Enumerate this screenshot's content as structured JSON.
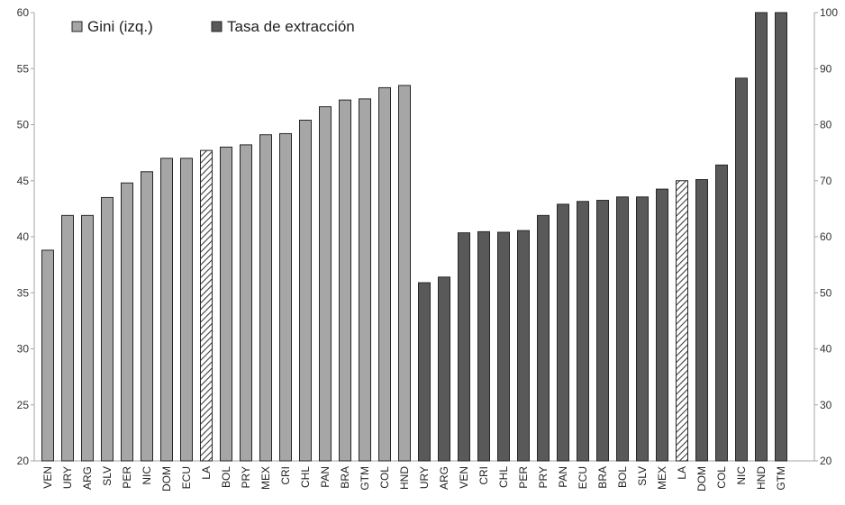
{
  "chart_data": {
    "type": "bar",
    "legend_position": "top-left",
    "grid": false,
    "axes": {
      "left": {
        "ylim": [
          20,
          60
        ],
        "ticks": [
          20,
          25,
          30,
          35,
          40,
          45,
          50,
          55,
          60
        ]
      },
      "right": {
        "ylim": [
          20,
          100
        ],
        "ticks": [
          20,
          30,
          40,
          50,
          60,
          70,
          80,
          90,
          100
        ]
      }
    },
    "series": [
      {
        "name": "Gini (izq.)",
        "axis": "left",
        "color": "#a6a6a6",
        "highlight_category": "LA",
        "categories": [
          "VEN",
          "URY",
          "ARG",
          "SLV",
          "PER",
          "NIC",
          "DOM",
          "ECU",
          "LA",
          "BOL",
          "PRY",
          "MEX",
          "CRI",
          "CHL",
          "PAN",
          "BRA",
          "GTM",
          "COL",
          "HND"
        ],
        "values": [
          38.8,
          41.9,
          41.9,
          43.5,
          44.8,
          45.8,
          47.0,
          47.0,
          47.7,
          48.0,
          48.2,
          49.1,
          49.2,
          50.4,
          51.6,
          52.2,
          52.3,
          53.3,
          53.5
        ]
      },
      {
        "name": "Tasa de extracción",
        "axis": "right",
        "color": "#595959",
        "highlight_category": "LA",
        "categories": [
          "URY",
          "ARG",
          "VEN",
          "CRI",
          "CHL",
          "PER",
          "PRY",
          "PAN",
          "ECU",
          "BRA",
          "BOL",
          "SLV",
          "MEX",
          "LA",
          "DOM",
          "COL",
          "NIC",
          "HND",
          "GTM"
        ],
        "values": [
          51.8,
          52.8,
          60.7,
          60.9,
          60.8,
          61.1,
          63.8,
          65.8,
          66.3,
          66.5,
          67.1,
          67.1,
          68.5,
          70.0,
          70.2,
          72.8,
          88.3,
          100,
          100
        ]
      }
    ]
  }
}
